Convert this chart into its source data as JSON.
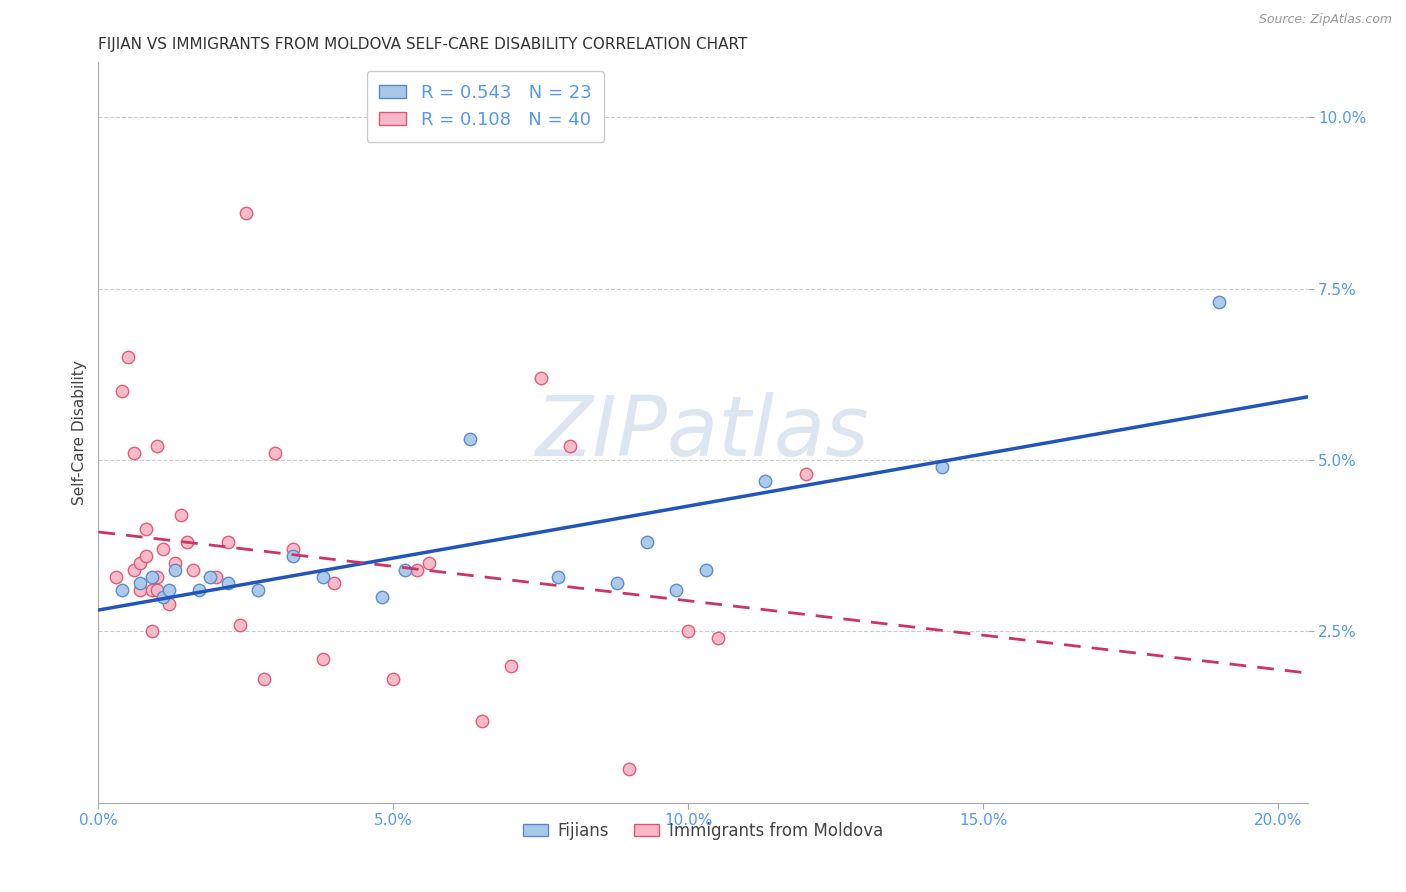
{
  "title": "FIJIAN VS IMMIGRANTS FROM MOLDOVA SELF-CARE DISABILITY CORRELATION CHART",
  "source": "Source: ZipAtlas.com",
  "ylabel": "Self-Care Disability",
  "xlim": [
    0.0,
    0.205
  ],
  "ylim": [
    0.0,
    0.108
  ],
  "xticks": [
    0.0,
    0.05,
    0.1,
    0.15,
    0.2
  ],
  "yticks": [
    0.025,
    0.05,
    0.075,
    0.1
  ],
  "ytick_labels": [
    "2.5%",
    "5.0%",
    "7.5%",
    "10.0%"
  ],
  "xtick_labels": [
    "0.0%",
    "5.0%",
    "10.0%",
    "15.0%",
    "20.0%"
  ],
  "fijian_color": "#a8c8e8",
  "fijian_edge_color": "#5588cc",
  "moldova_color": "#f8b8c8",
  "moldova_edge_color": "#e05575",
  "fijian_line_color": "#2255bb",
  "moldova_line_color": "#cc3366",
  "grid_color": "#cccccc",
  "watermark_text": "ZIPatlas",
  "watermark_color": "#dde5f0",
  "legend_fijian_r": "0.543",
  "legend_fijian_n": "23",
  "legend_moldova_r": "0.108",
  "legend_moldova_n": "40",
  "fijian_x": [
    0.004,
    0.007,
    0.009,
    0.011,
    0.012,
    0.013,
    0.017,
    0.019,
    0.022,
    0.027,
    0.033,
    0.038,
    0.048,
    0.052,
    0.063,
    0.078,
    0.088,
    0.093,
    0.098,
    0.103,
    0.113,
    0.143,
    0.19
  ],
  "fijian_y": [
    0.031,
    0.032,
    0.033,
    0.03,
    0.031,
    0.034,
    0.031,
    0.033,
    0.032,
    0.031,
    0.036,
    0.033,
    0.03,
    0.034,
    0.053,
    0.033,
    0.032,
    0.038,
    0.031,
    0.034,
    0.047,
    0.049,
    0.073
  ],
  "moldova_x": [
    0.003,
    0.004,
    0.005,
    0.006,
    0.006,
    0.007,
    0.007,
    0.008,
    0.008,
    0.009,
    0.009,
    0.01,
    0.01,
    0.01,
    0.011,
    0.012,
    0.013,
    0.014,
    0.015,
    0.016,
    0.02,
    0.022,
    0.024,
    0.025,
    0.028,
    0.03,
    0.033,
    0.038,
    0.04,
    0.05,
    0.054,
    0.056,
    0.065,
    0.07,
    0.075,
    0.08,
    0.09,
    0.1,
    0.105,
    0.12
  ],
  "moldova_y": [
    0.033,
    0.06,
    0.065,
    0.051,
    0.034,
    0.031,
    0.035,
    0.04,
    0.036,
    0.025,
    0.031,
    0.052,
    0.031,
    0.033,
    0.037,
    0.029,
    0.035,
    0.042,
    0.038,
    0.034,
    0.033,
    0.038,
    0.026,
    0.086,
    0.018,
    0.051,
    0.037,
    0.021,
    0.032,
    0.018,
    0.034,
    0.035,
    0.012,
    0.02,
    0.062,
    0.052,
    0.005,
    0.025,
    0.024,
    0.048
  ],
  "marker_size": 80,
  "title_fontsize": 11,
  "axis_label_fontsize": 11,
  "tick_fontsize": 11,
  "tick_label_color": "#5599ee",
  "axis_color": "#aaaaaa",
  "background_color": "#ffffff"
}
